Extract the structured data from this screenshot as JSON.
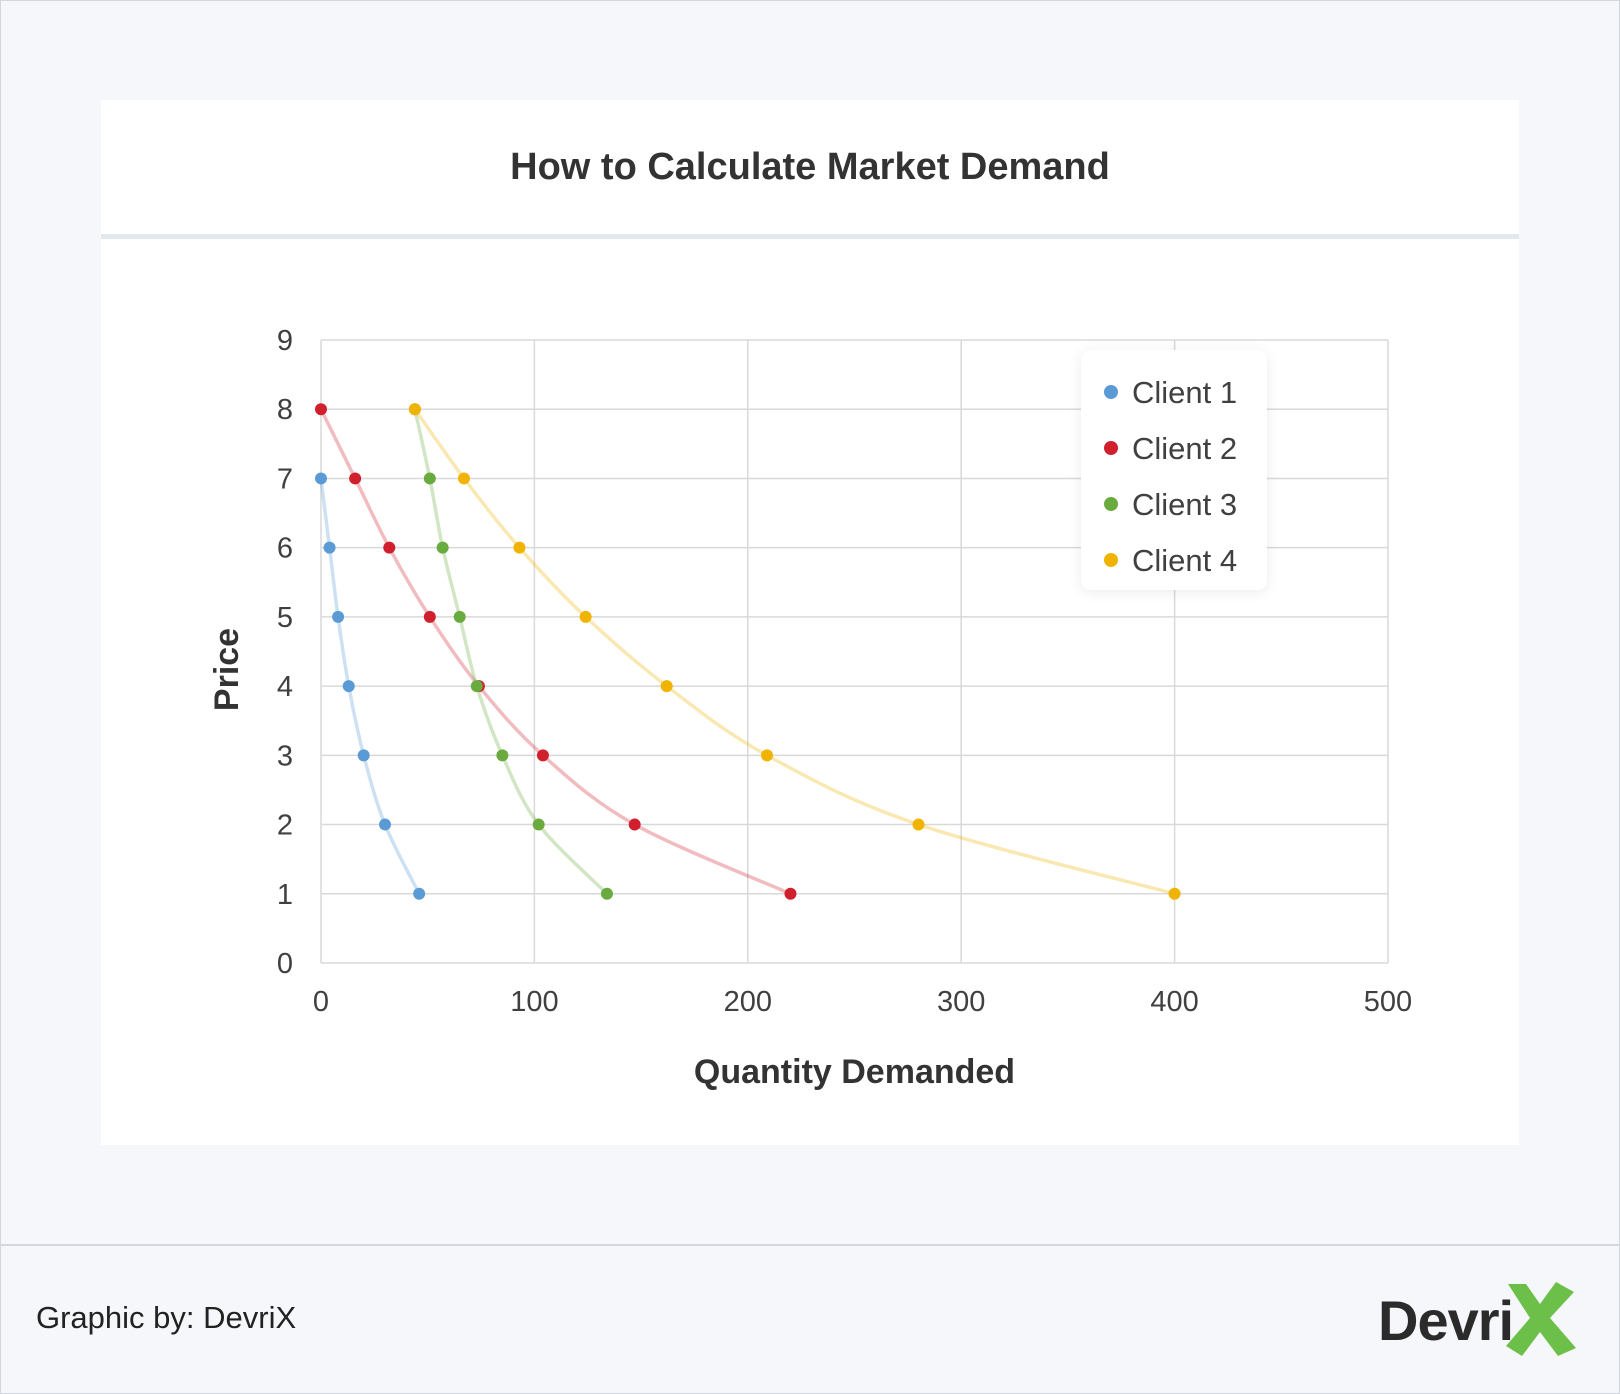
{
  "title": "How to Calculate Market Demand",
  "footer": {
    "credit": "Graphic by: DevriX",
    "logo_text": "Devri"
  },
  "colors": {
    "client1": "#5b9bd5",
    "client2": "#d0202e",
    "client3": "#6aab3f",
    "client4": "#f0b400",
    "grid": "#d9d9d9",
    "logo_x": "#6cc04a"
  },
  "chart_data": {
    "type": "scatter",
    "title": "How to Calculate Market Demand",
    "xlabel": "Quantity Demanded",
    "ylabel": "Price",
    "xlim": [
      0,
      500
    ],
    "ylim": [
      0,
      9
    ],
    "xticks": [
      0,
      100,
      200,
      300,
      400,
      500
    ],
    "yticks": [
      0,
      1,
      2,
      3,
      4,
      5,
      6,
      7,
      8,
      9
    ],
    "grid": true,
    "smoothed_lines": true,
    "legend_position": "top-right",
    "series": [
      {
        "name": "Client 1",
        "color": "#5b9bd5",
        "points": [
          [
            0,
            7
          ],
          [
            4,
            6
          ],
          [
            8,
            5
          ],
          [
            13,
            4
          ],
          [
            20,
            3
          ],
          [
            30,
            2
          ],
          [
            46,
            1
          ]
        ]
      },
      {
        "name": "Client 2",
        "color": "#d0202e",
        "points": [
          [
            0,
            8
          ],
          [
            16,
            7
          ],
          [
            32,
            6
          ],
          [
            51,
            5
          ],
          [
            74,
            4
          ],
          [
            104,
            3
          ],
          [
            147,
            2
          ],
          [
            220,
            1
          ]
        ]
      },
      {
        "name": "Client 3",
        "color": "#6aab3f",
        "points": [
          [
            44,
            8
          ],
          [
            51,
            7
          ],
          [
            57,
            6
          ],
          [
            65,
            5
          ],
          [
            73,
            4
          ],
          [
            85,
            3
          ],
          [
            102,
            2
          ],
          [
            134,
            1
          ]
        ]
      },
      {
        "name": "Client 4",
        "color": "#f0b400",
        "points": [
          [
            44,
            8
          ],
          [
            67,
            7
          ],
          [
            93,
            6
          ],
          [
            124,
            5
          ],
          [
            162,
            4
          ],
          [
            209,
            3
          ],
          [
            280,
            2
          ],
          [
            400,
            1
          ]
        ]
      }
    ]
  }
}
